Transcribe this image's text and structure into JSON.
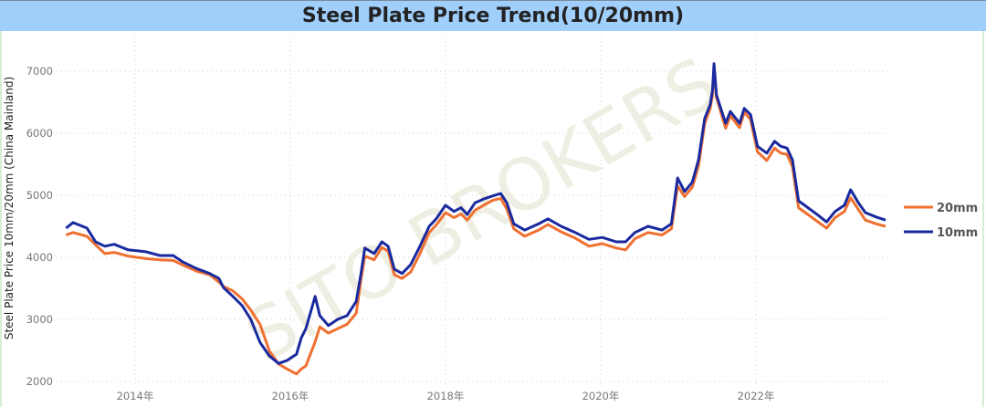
{
  "chart_data": {
    "type": "line",
    "title": "Steel Plate Price Trend(10/20mm)",
    "ylabel": "Steel Plate Price 10mm/20mm (China Mainland)",
    "xlabel": "",
    "watermark": "SITO BROKERS",
    "ylim": [
      2000,
      7000
    ],
    "yticks": [
      2000,
      3000,
      4000,
      5000,
      6000,
      7000
    ],
    "xticks": [
      {
        "value": 2014,
        "label": "2014年"
      },
      {
        "value": 2016,
        "label": "2016年"
      },
      {
        "value": 2018,
        "label": "2018年"
      },
      {
        "value": 2020,
        "label": "2020年"
      },
      {
        "value": 2022,
        "label": "2022年"
      }
    ],
    "grid": true,
    "legend_position": "right",
    "x": [
      2013.11,
      2013.2,
      2013.38,
      2013.49,
      2013.61,
      2013.73,
      2013.91,
      2014.14,
      2014.32,
      2014.49,
      2014.61,
      2014.79,
      2014.96,
      2015.08,
      2015.14,
      2015.26,
      2015.38,
      2015.49,
      2015.61,
      2015.73,
      2015.85,
      2015.96,
      2016.08,
      2016.14,
      2016.2,
      2016.32,
      2016.38,
      2016.49,
      2016.61,
      2016.73,
      2016.85,
      2016.91,
      2016.96,
      2017.08,
      2017.18,
      2017.26,
      2017.34,
      2017.44,
      2017.55,
      2017.67,
      2017.79,
      2017.88,
      2018.0,
      2018.11,
      2018.2,
      2018.28,
      2018.38,
      2018.49,
      2018.61,
      2018.71,
      2018.79,
      2018.88,
      2019.02,
      2019.2,
      2019.32,
      2019.49,
      2019.67,
      2019.85,
      2020.02,
      2020.2,
      2020.32,
      2020.44,
      2020.61,
      2020.79,
      2020.91,
      2020.99,
      2021.08,
      2021.18,
      2021.26,
      2021.34,
      2021.41,
      2021.44,
      2021.46,
      2021.49,
      2021.61,
      2021.67,
      2021.79,
      2021.85,
      2021.93,
      2022.02,
      2022.14,
      2022.24,
      2022.32,
      2022.4,
      2022.47,
      2022.55,
      2022.67,
      2022.79,
      2022.91,
      2023.02,
      2023.14,
      2023.22,
      2023.32,
      2023.41,
      2023.55,
      2023.67
    ],
    "series": [
      {
        "name": "20mm",
        "color": "#f07030",
        "values": [
          4360,
          4400,
          4340,
          4200,
          4060,
          4080,
          4020,
          3980,
          3960,
          3950,
          3880,
          3780,
          3720,
          3600,
          3530,
          3460,
          3330,
          3150,
          2920,
          2490,
          2280,
          2200,
          2120,
          2200,
          2250,
          2640,
          2880,
          2780,
          2850,
          2920,
          3100,
          3640,
          4020,
          3960,
          4160,
          4100,
          3720,
          3660,
          3760,
          4060,
          4400,
          4520,
          4720,
          4640,
          4700,
          4600,
          4760,
          4840,
          4920,
          4950,
          4780,
          4460,
          4340,
          4440,
          4530,
          4410,
          4310,
          4180,
          4220,
          4150,
          4120,
          4300,
          4400,
          4360,
          4460,
          5150,
          4980,
          5130,
          5470,
          6160,
          6400,
          6620,
          7080,
          6580,
          6080,
          6280,
          6090,
          6340,
          6220,
          5700,
          5560,
          5760,
          5680,
          5660,
          5460,
          4800,
          4690,
          4580,
          4470,
          4640,
          4740,
          4960,
          4770,
          4600,
          4540,
          4500
        ]
      },
      {
        "name": "10mm",
        "color": "#1a2a9e",
        "values": [
          4470,
          4560,
          4470,
          4250,
          4180,
          4210,
          4120,
          4090,
          4030,
          4030,
          3930,
          3820,
          3740,
          3660,
          3510,
          3370,
          3220,
          3000,
          2630,
          2410,
          2290,
          2340,
          2440,
          2700,
          2850,
          3370,
          3060,
          2900,
          3000,
          3060,
          3290,
          3740,
          4150,
          4060,
          4250,
          4180,
          3810,
          3740,
          3880,
          4180,
          4500,
          4620,
          4840,
          4740,
          4800,
          4690,
          4880,
          4940,
          4990,
          5030,
          4880,
          4540,
          4440,
          4540,
          4620,
          4500,
          4400,
          4290,
          4320,
          4250,
          4250,
          4400,
          4500,
          4440,
          4540,
          5280,
          5060,
          5210,
          5570,
          6240,
          6460,
          6690,
          7120,
          6620,
          6160,
          6350,
          6160,
          6400,
          6300,
          5790,
          5680,
          5870,
          5790,
          5760,
          5570,
          4910,
          4800,
          4690,
          4570,
          4740,
          4840,
          5090,
          4880,
          4720,
          4650,
          4600
        ]
      }
    ]
  }
}
